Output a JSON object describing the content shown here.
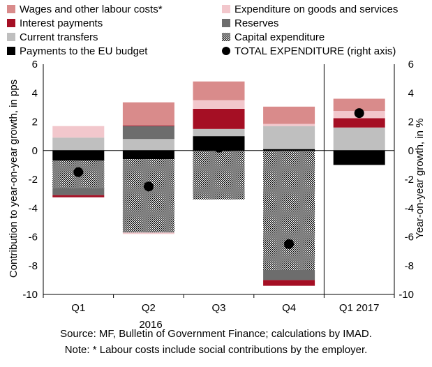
{
  "chart_data": {
    "type": "bar",
    "stacked": true,
    "categories": [
      "Q1",
      "Q2",
      "Q3",
      "Q4",
      "Q1 2017"
    ],
    "year_label": "2016",
    "ylabel": "Contribution to year-on-year growth, in pps",
    "y2label": "Year-on-year growth, in %",
    "ylim": [
      -10,
      6
    ],
    "y2lim": [
      -10,
      6
    ],
    "yticks": [
      -10,
      -8,
      -6,
      -4,
      -2,
      0,
      2,
      4,
      6
    ],
    "grid": false,
    "legend_position": "top",
    "series": [
      {
        "name": "Payments to the EU budget",
        "color": "#000000",
        "pattern": "solid",
        "values": [
          -0.7,
          -0.6,
          1.0,
          0.1,
          -1.0
        ]
      },
      {
        "name": "Current transfers",
        "color": "#bfbfbf",
        "pattern": "solid",
        "values": [
          0.9,
          0.8,
          0.5,
          1.6,
          1.6
        ]
      },
      {
        "name": "Capital expenditure",
        "color": "#000000",
        "pattern": "dots",
        "values": [
          -1.9,
          -5.1,
          -3.4,
          -8.3,
          0.0
        ]
      },
      {
        "name": "Reserves",
        "color": "#6d6d6d",
        "pattern": "solid",
        "values": [
          -0.5,
          0.9,
          0.0,
          -0.7,
          0.0
        ]
      },
      {
        "name": "Interest payments",
        "color": "#a50f24",
        "pattern": "solid",
        "values": [
          -0.15,
          0.05,
          1.4,
          -0.4,
          0.65
        ]
      },
      {
        "name": "Expenditure on goods and services",
        "color": "#f2c7cc",
        "pattern": "solid",
        "values": [
          0.8,
          -0.1,
          0.6,
          0.15,
          0.5
        ]
      },
      {
        "name": "Wages and other labour costs*",
        "color": "#d98b8b",
        "pattern": "solid",
        "values": [
          0.0,
          1.6,
          1.3,
          1.2,
          0.85
        ]
      }
    ],
    "total": {
      "name": "TOTAL EXPENDITURE (right axis)",
      "color": "#000000",
      "values": [
        -1.5,
        -2.5,
        0.2,
        -6.5,
        2.6
      ]
    },
    "legend_order": [
      "Wages and other labour costs*",
      "Expenditure on goods and services",
      "Interest payments",
      "Reserves",
      "Current transfers",
      "Capital expenditure",
      "Payments to the EU budget",
      "TOTAL EXPENDITURE (right axis)"
    ]
  },
  "notes": {
    "source": "Source: MF, Bulletin of Government Finance; calculations by IMAD.",
    "note": "Note: * Labour costs include social contributions by the employer."
  }
}
